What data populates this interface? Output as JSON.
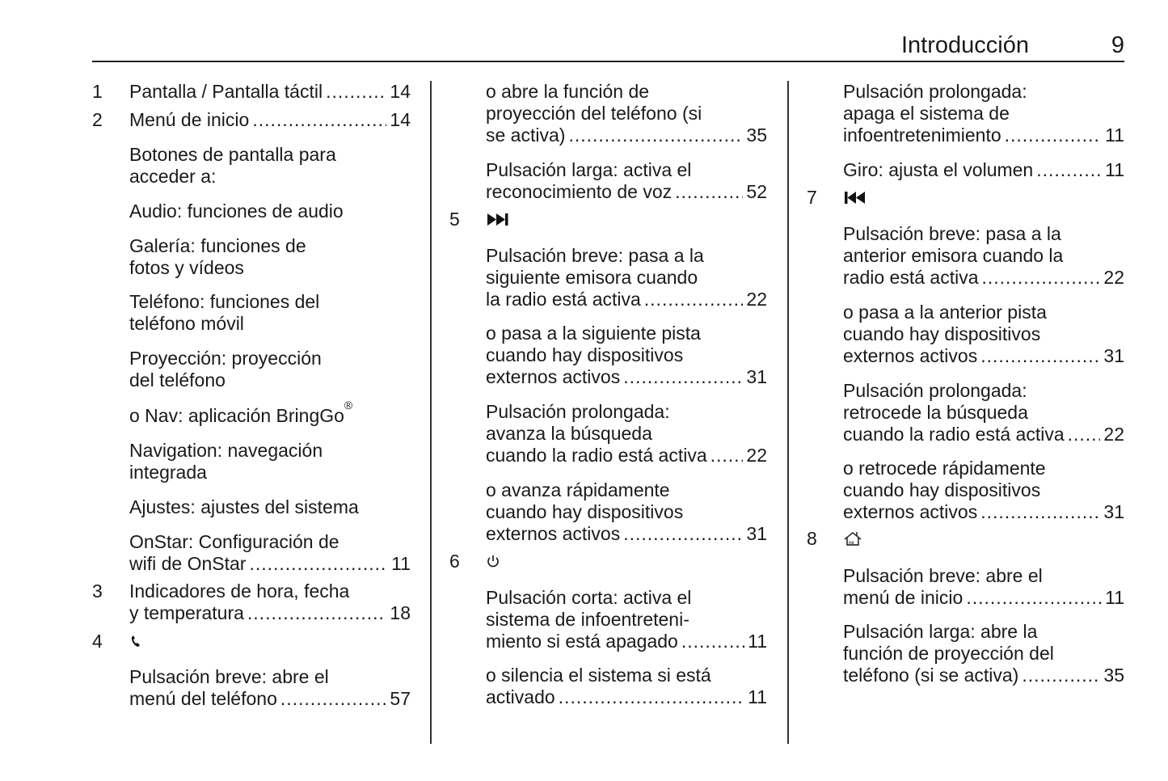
{
  "header": {
    "title": "Introducción",
    "page_number": "9"
  },
  "columns": [
    [
      {
        "num": "1",
        "lines": [
          "Pantalla / Pantalla táctil"
        ],
        "page": "14"
      },
      {
        "num": "2",
        "lines": [
          "Menú de inicio"
        ],
        "page": "14"
      },
      {
        "lines": [
          "Botones de pantalla para",
          "acceder a:"
        ]
      },
      {
        "lines": [
          "Audio: funciones de audio"
        ]
      },
      {
        "lines": [
          "Galería: funciones de",
          "fotos y vídeos"
        ]
      },
      {
        "lines": [
          "Teléfono: funciones del",
          "teléfono móvil"
        ]
      },
      {
        "lines": [
          "Proyección: proyección",
          "del teléfono"
        ]
      },
      {
        "lines": [
          "o Nav: aplicación BringGo"
        ],
        "sup": "®"
      },
      {
        "lines": [
          "Navigation: navegación",
          "integrada"
        ]
      },
      {
        "lines": [
          "Ajustes: ajustes del sistema"
        ]
      },
      {
        "lines": [
          "OnStar: Configuración de",
          "wifi de OnStar"
        ],
        "page": "11"
      },
      {
        "num": "3",
        "lines": [
          "Indicadores de hora, fecha",
          "y temperatura"
        ],
        "page": "18"
      },
      {
        "num": "4",
        "icon": "phone-icon"
      },
      {
        "lines": [
          "Pulsación breve: abre el",
          "menú del teléfono"
        ],
        "page": "57"
      }
    ],
    [
      {
        "lines": [
          "o abre la función de",
          "proyección del teléfono (si",
          "se activa)"
        ],
        "page": "35"
      },
      {
        "lines": [
          "Pulsación larga: activa el",
          "reconocimiento de voz"
        ],
        "page": "52"
      },
      {
        "num": "5",
        "icon": "skip-forward-icon"
      },
      {
        "lines": [
          "Pulsación breve: pasa a la",
          "siguiente emisora cuando",
          "la radio está activa"
        ],
        "page": "22"
      },
      {
        "lines": [
          "o pasa a la siguiente pista",
          "cuando hay dispositivos",
          "externos activos"
        ],
        "page": "31"
      },
      {
        "lines": [
          "Pulsación prolongada:",
          "avanza la búsqueda",
          "cuando la radio está activa"
        ],
        "page": "22"
      },
      {
        "lines": [
          "o avanza rápidamente",
          "cuando hay dispositivos",
          "externos activos"
        ],
        "page": "31"
      },
      {
        "num": "6",
        "icon": "power-icon"
      },
      {
        "lines": [
          "Pulsación corta: activa el",
          "sistema de infoentreteni-",
          "miento si está apagado"
        ],
        "page": "11"
      },
      {
        "lines": [
          "o silencia el sistema si está",
          "activado"
        ],
        "page": "11"
      }
    ],
    [
      {
        "lines": [
          "Pulsación prolongada:",
          "apaga el sistema de",
          "infoentretenimiento"
        ],
        "page": "11"
      },
      {
        "lines": [
          "Giro: ajusta el volumen"
        ],
        "page": "11"
      },
      {
        "num": "7",
        "icon": "skip-back-icon"
      },
      {
        "lines": [
          "Pulsación breve: pasa a la",
          "anterior emisora cuando la",
          "radio está activa"
        ],
        "page": "22"
      },
      {
        "lines": [
          "o pasa a la anterior pista",
          "cuando hay dispositivos",
          "externos activos"
        ],
        "page": "31"
      },
      {
        "lines": [
          "Pulsación prolongada:",
          "retrocede la búsqueda",
          "cuando la radio está activa"
        ],
        "page": "22"
      },
      {
        "lines": [
          "o retrocede rápidamente",
          "cuando hay dispositivos",
          "externos activos"
        ],
        "page": "31"
      },
      {
        "num": "8",
        "icon": "home-icon"
      },
      {
        "lines": [
          "Pulsación breve: abre el",
          "menú de inicio"
        ],
        "page": "11"
      },
      {
        "lines": [
          "Pulsación larga: abre la",
          "función de proyección del",
          "teléfono (si se activa)"
        ],
        "page": "35"
      }
    ]
  ]
}
